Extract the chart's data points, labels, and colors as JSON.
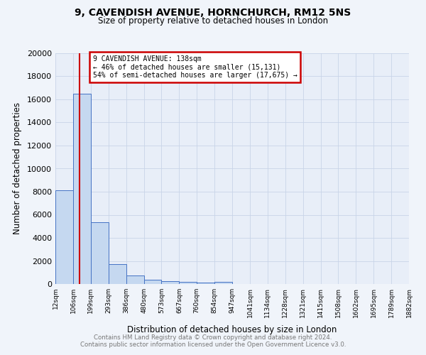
{
  "title1": "9, CAVENDISH AVENUE, HORNCHURCH, RM12 5NS",
  "title2": "Size of property relative to detached houses in London",
  "xlabel": "Distribution of detached houses by size in London",
  "ylabel": "Number of detached properties",
  "footnote1": "Contains HM Land Registry data © Crown copyright and database right 2024.",
  "footnote2": "Contains public sector information licensed under the Open Government Licence v3.0.",
  "bin_edges": [
    12,
    106,
    199,
    293,
    386,
    480,
    573,
    667,
    760,
    854,
    947,
    1041,
    1134,
    1228,
    1321,
    1415,
    1508,
    1602,
    1695,
    1789,
    1882
  ],
  "bin_labels": [
    "12sqm",
    "106sqm",
    "199sqm",
    "293sqm",
    "386sqm",
    "480sqm",
    "573sqm",
    "667sqm",
    "760sqm",
    "854sqm",
    "947sqm",
    "1041sqm",
    "1134sqm",
    "1228sqm",
    "1321sqm",
    "1415sqm",
    "1508sqm",
    "1602sqm",
    "1695sqm",
    "1789sqm",
    "1882sqm"
  ],
  "bar_heights": [
    8100,
    16500,
    5350,
    1750,
    750,
    380,
    230,
    175,
    130,
    200,
    0,
    0,
    0,
    0,
    0,
    0,
    0,
    0,
    0,
    0
  ],
  "bar_color": "#c5d8f0",
  "bar_edge_color": "#4472c4",
  "property_size": 138,
  "property_line_color": "#cc0000",
  "annotation_line1": "9 CAVENDISH AVENUE: 138sqm",
  "annotation_line2": "← 46% of detached houses are smaller (15,131)",
  "annotation_line3": "54% of semi-detached houses are larger (17,675) →",
  "annotation_box_color": "#cc0000",
  "ylim": [
    0,
    20000
  ],
  "yticks": [
    0,
    2000,
    4000,
    6000,
    8000,
    10000,
    12000,
    14000,
    16000,
    18000,
    20000
  ],
  "grid_color": "#c8d4e8",
  "bg_color": "#e8eef8",
  "fig_bg_color": "#f0f4fa"
}
